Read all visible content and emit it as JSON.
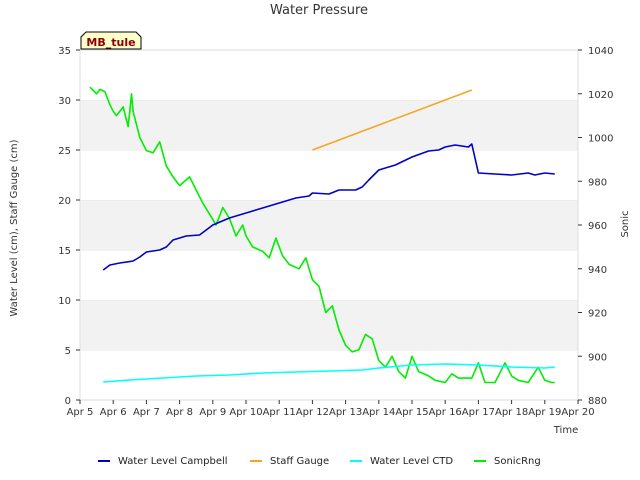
{
  "chart_data": {
    "type": "line",
    "title": "Water Pressure",
    "xlabel": "Time",
    "ylabel": "Water Level (cm), Staff Gauge (cm)",
    "y2label": "Sonic",
    "badge": "MB_tule",
    "xlim": [
      5,
      20
    ],
    "ylim": [
      0,
      35
    ],
    "y2lim": [
      880,
      1040
    ],
    "x_ticks": [
      5,
      6,
      7,
      8,
      9,
      10,
      11,
      12,
      13,
      14,
      15,
      16,
      17,
      18,
      19,
      20
    ],
    "x_tick_labels": [
      "Apr 5",
      "Apr 6",
      "Apr 7",
      "Apr 8",
      "Apr 9",
      "Apr 10",
      "Apr 11",
      "Apr 12",
      "Apr 13",
      "Apr 14",
      "Apr 15",
      "Apr 16",
      "Apr 17",
      "Apr 18",
      "Apr 19",
      "Apr 20"
    ],
    "y_ticks": [
      0,
      5,
      10,
      15,
      20,
      25,
      30,
      35
    ],
    "y2_ticks": [
      880,
      900,
      920,
      940,
      960,
      980,
      1000,
      1020,
      1040
    ],
    "grid": "horizontal bands",
    "legend_position": "bottom",
    "series": [
      {
        "name": "Water Level Campbell",
        "axis": "left",
        "color": "#0000cc",
        "x": [
          5.7,
          5.9,
          6.2,
          6.6,
          6.8,
          7.0,
          7.4,
          7.6,
          7.8,
          8.2,
          8.6,
          8.8,
          9.0,
          9.5,
          10.0,
          10.5,
          11.0,
          11.5,
          11.9,
          12.0,
          12.5,
          12.8,
          13.0,
          13.3,
          13.5,
          13.7,
          14.0,
          14.5,
          15.0,
          15.5,
          15.8,
          16.0,
          16.3,
          16.7,
          16.8,
          17.0,
          17.5,
          18.0,
          18.5,
          18.7,
          19.0,
          19.3
        ],
        "y": [
          13.0,
          13.5,
          13.7,
          13.9,
          14.3,
          14.8,
          15.0,
          15.3,
          16.0,
          16.4,
          16.5,
          17.0,
          17.5,
          18.2,
          18.7,
          19.2,
          19.7,
          20.2,
          20.4,
          20.7,
          20.6,
          21.0,
          21.0,
          21.0,
          21.3,
          22.0,
          23.0,
          23.5,
          24.3,
          24.9,
          25.0,
          25.3,
          25.5,
          25.3,
          25.6,
          22.7,
          22.6,
          22.5,
          22.7,
          22.5,
          22.7,
          22.6
        ]
      },
      {
        "name": "Staff Gauge",
        "axis": "left",
        "color": "#f5a623",
        "x": [
          12.0,
          16.8
        ],
        "y": [
          25.0,
          31.0
        ]
      },
      {
        "name": "Water Level CTD",
        "axis": "left",
        "color": "#00ffff",
        "x": [
          5.7,
          6.5,
          7.5,
          8.5,
          9.5,
          10.5,
          11.5,
          12.5,
          13.5,
          14.0,
          15.0,
          16.0,
          17.0,
          18.0,
          19.0,
          19.3
        ],
        "y": [
          1.8,
          2.0,
          2.2,
          2.4,
          2.5,
          2.7,
          2.8,
          2.9,
          3.0,
          3.2,
          3.5,
          3.6,
          3.5,
          3.3,
          3.2,
          3.3
        ]
      },
      {
        "name": "SonicRng",
        "axis": "right",
        "color": "#00ee00",
        "x": [
          5.3,
          5.5,
          5.6,
          5.75,
          5.9,
          6.0,
          6.1,
          6.3,
          6.45,
          6.5,
          6.55,
          6.6,
          6.8,
          7.0,
          7.2,
          7.4,
          7.6,
          7.8,
          8.0,
          8.3,
          8.6,
          8.7,
          8.9,
          9.1,
          9.3,
          9.5,
          9.7,
          9.9,
          10.0,
          10.2,
          10.5,
          10.7,
          10.9,
          11.1,
          11.3,
          11.6,
          11.8,
          12.0,
          12.2,
          12.4,
          12.6,
          12.8,
          13.0,
          13.2,
          13.4,
          13.6,
          13.8,
          14.0,
          14.2,
          14.4,
          14.6,
          14.8,
          15.0,
          15.2,
          15.5,
          15.7,
          16.0,
          16.2,
          16.4,
          16.6,
          16.8,
          17.0,
          17.2,
          17.5,
          17.8,
          18.0,
          18.2,
          18.5,
          18.8,
          19.0,
          19.2,
          19.3
        ],
        "y": [
          1023,
          1020,
          1022,
          1021,
          1015,
          1012,
          1010,
          1014,
          1005,
          1012,
          1020,
          1012,
          1000,
          994,
          993,
          998,
          987,
          982,
          978,
          982,
          973,
          970,
          965,
          960,
          968,
          963,
          955,
          960,
          955,
          950,
          948,
          945,
          954,
          946,
          942,
          940,
          945,
          935,
          932,
          920,
          923,
          912,
          905,
          902,
          903,
          910,
          908,
          898,
          895,
          900,
          893,
          890,
          900,
          893,
          891,
          889,
          888,
          892,
          890,
          890,
          890,
          897,
          888,
          888,
          897,
          891,
          889,
          888,
          895,
          889,
          888,
          888
        ]
      }
    ]
  }
}
